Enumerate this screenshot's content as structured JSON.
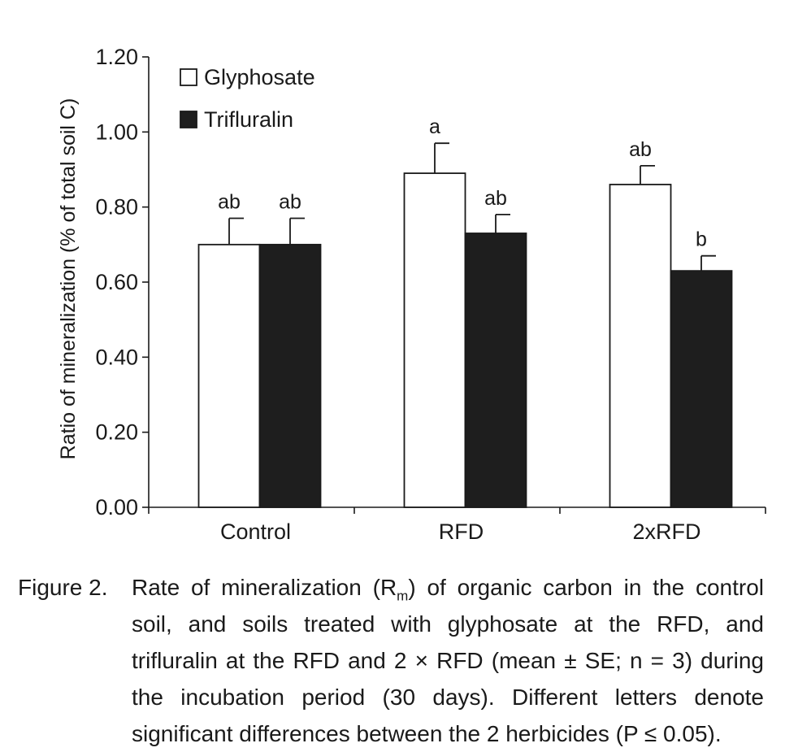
{
  "chart_data": {
    "type": "bar",
    "categories": [
      "Control",
      "RFD",
      "2xRFD"
    ],
    "series": [
      {
        "name": "Glyphosate",
        "color": "#ffffff",
        "values": [
          0.7,
          0.89,
          0.86
        ],
        "errors": [
          0.07,
          0.08,
          0.05
        ],
        "letters": [
          "ab",
          "a",
          "ab"
        ]
      },
      {
        "name": "Trifluralin",
        "color": "#1e1e1e",
        "values": [
          0.7,
          0.73,
          0.63
        ],
        "errors": [
          0.07,
          0.05,
          0.04
        ],
        "letters": [
          "ab",
          "ab",
          "b"
        ]
      }
    ],
    "ylabel": "Ratio of mineralization (% of total soil C)",
    "xlabel": "",
    "ylim": [
      0,
      1.2
    ],
    "yticks": [
      "0.00",
      "0.20",
      "0.40",
      "0.60",
      "0.80",
      "1.00",
      "1.20"
    ],
    "grid": false,
    "legend_position": "top-left"
  },
  "caption": {
    "label": "Figure 2.",
    "text_before_sub": "Rate of mineralization (R",
    "subscript": "m",
    "text_after_sub": ") of organic carbon in the control soil, and soils treated with glyphosate at the RFD, and trifluralin at the RFD and 2 × RFD (mean ± SE; n = 3) during the incubation period (30 days). Different letters denote significant differences between the 2 herbicides (P ≤ 0.05)."
  }
}
